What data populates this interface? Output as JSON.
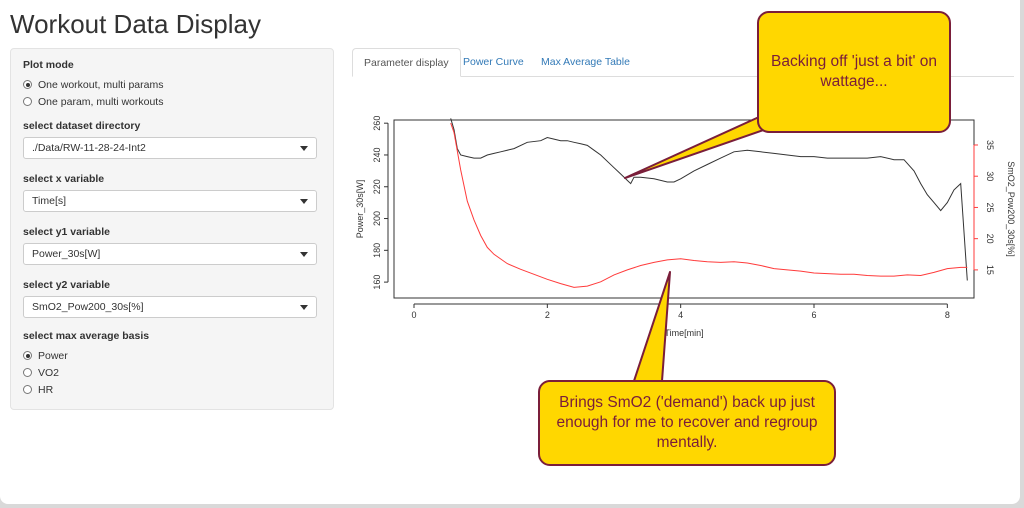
{
  "app": {
    "title": "Workout Data Display"
  },
  "sidebar": {
    "plot_mode": {
      "label": "Plot mode",
      "options": [
        "One workout, multi params",
        "One param, multi workouts"
      ],
      "selected": 0
    },
    "dataset_dir": {
      "label": "select dataset directory",
      "value": "./Data/RW-11-28-24-Int2"
    },
    "x_var": {
      "label": "select x variable",
      "value": "Time[s]"
    },
    "y1_var": {
      "label": "select y1 variable",
      "value": "Power_30s[W]"
    },
    "y2_var": {
      "label": "select y2 variable",
      "value": "SmO2_Pow200_30s[%]"
    },
    "max_avg": {
      "label": "select max average basis",
      "options": [
        "Power",
        "VO2",
        "HR"
      ],
      "selected": 0
    }
  },
  "tabs": [
    {
      "label": "Parameter display",
      "active": true
    },
    {
      "label": "Power Curve",
      "active": false
    },
    {
      "label": "Max Average Table",
      "active": false
    }
  ],
  "callouts": {
    "top": "Backing off 'just a bit' on wattage...",
    "bottom": "Brings SmO2 ('demand') back up just enough for me to recover and regroup mentally."
  },
  "colors": {
    "callout_fill": "#ffd700",
    "callout_border": "#7a1e3a",
    "y1_series": "#333333",
    "y2_series": "#ff3b3b",
    "y2_axis": "#ff3b3b"
  },
  "chart_data": {
    "type": "line",
    "xlabel": "Time[min]",
    "ylabel": "Power_30s[W]",
    "ylabel_right": "SmO2_Pow200_30s[%]",
    "xlim": [
      -0.3,
      8.4
    ],
    "ylim": [
      150,
      262
    ],
    "ylim_right": [
      10.5,
      39
    ],
    "x_ticks": [
      0,
      2,
      4,
      6,
      8
    ],
    "y_ticks": [
      160,
      180,
      200,
      220,
      240,
      260
    ],
    "y_ticks_right": [
      15,
      20,
      25,
      30,
      35
    ],
    "grid": false,
    "series": [
      {
        "axis": "left",
        "x": [
          0.55,
          0.6,
          0.65,
          0.7,
          0.8,
          0.9,
          1.0,
          1.1,
          1.2,
          1.3,
          1.5,
          1.7,
          1.9,
          2.0,
          2.1,
          2.2,
          2.3,
          2.4,
          2.5,
          2.6,
          2.7,
          2.8,
          2.9,
          3.0,
          3.1,
          3.2,
          3.25,
          3.3,
          3.4,
          3.6,
          3.8,
          3.9,
          4.0,
          4.2,
          4.4,
          4.6,
          4.8,
          5.0,
          5.2,
          5.4,
          5.6,
          5.8,
          6.0,
          6.2,
          6.4,
          6.6,
          6.8,
          7.0,
          7.2,
          7.35,
          7.5,
          7.6,
          7.7,
          7.8,
          7.9,
          8.0,
          8.1,
          8.2,
          8.3
        ],
        "y": [
          263,
          256,
          244,
          240,
          239,
          238,
          238,
          240,
          241,
          242,
          244,
          248,
          249,
          251,
          250,
          249,
          249,
          248,
          247,
          246,
          243,
          240,
          236,
          232,
          228,
          224,
          222,
          226,
          226,
          225,
          223,
          223,
          225,
          230,
          234,
          238,
          242,
          243,
          242,
          241,
          240,
          239,
          239,
          238,
          238,
          238,
          238,
          239,
          237,
          237,
          230,
          222,
          215,
          210,
          205,
          210,
          218,
          222,
          161
        ]
      },
      {
        "axis": "right",
        "x": [
          0.55,
          0.6,
          0.7,
          0.8,
          0.9,
          1.0,
          1.1,
          1.2,
          1.4,
          1.6,
          1.8,
          2.0,
          2.2,
          2.4,
          2.6,
          2.8,
          3.0,
          3.2,
          3.4,
          3.6,
          3.8,
          4.0,
          4.2,
          4.4,
          4.6,
          4.8,
          5.0,
          5.2,
          5.4,
          5.6,
          5.8,
          6.0,
          6.2,
          6.4,
          6.6,
          6.8,
          7.0,
          7.2,
          7.4,
          7.6,
          7.8,
          8.0,
          8.2,
          8.3
        ],
        "y": [
          38.5,
          37,
          31,
          26,
          23,
          20.5,
          18.6,
          17.5,
          16,
          15.1,
          14.3,
          13.5,
          12.8,
          12.2,
          12.4,
          13.1,
          14.2,
          15.0,
          15.7,
          16.2,
          16.6,
          16.8,
          16.5,
          16.3,
          16.2,
          16.3,
          16.1,
          15.7,
          15.2,
          15.0,
          14.8,
          14.5,
          14.4,
          14.3,
          14.3,
          14.1,
          14.0,
          14.0,
          14.2,
          14.1,
          14.6,
          15.2,
          15.4,
          15.4
        ]
      }
    ]
  }
}
